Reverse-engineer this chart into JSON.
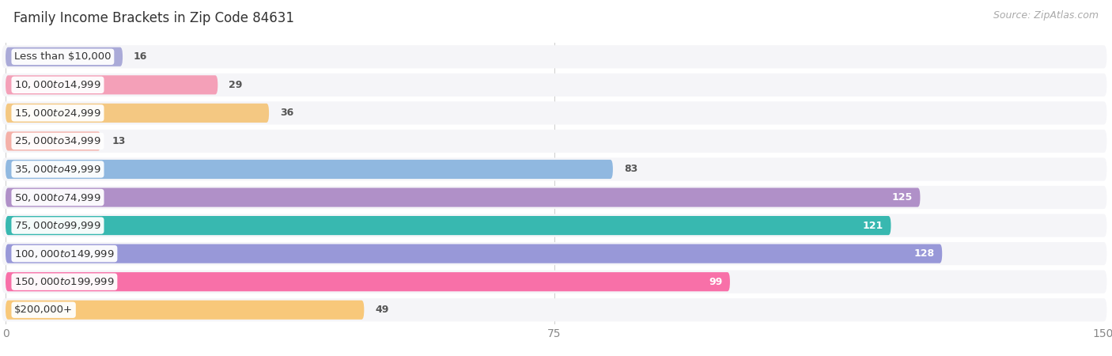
{
  "title": "Family Income Brackets in Zip Code 84631",
  "source": "Source: ZipAtlas.com",
  "categories": [
    "Less than $10,000",
    "$10,000 to $14,999",
    "$15,000 to $24,999",
    "$25,000 to $34,999",
    "$35,000 to $49,999",
    "$50,000 to $74,999",
    "$75,000 to $99,999",
    "$100,000 to $149,999",
    "$150,000 to $199,999",
    "$200,000+"
  ],
  "values": [
    16,
    29,
    36,
    13,
    83,
    125,
    121,
    128,
    99,
    49
  ],
  "bar_colors": [
    "#aaaad8",
    "#f4a0b8",
    "#f4c882",
    "#f4b0a8",
    "#90b8e0",
    "#b090c8",
    "#38b8b0",
    "#9898d8",
    "#f870a8",
    "#f8c87a"
  ],
  "label_colors": [
    "#666666",
    "#666666",
    "#666666",
    "#666666",
    "#666666",
    "#ffffff",
    "#ffffff",
    "#ffffff",
    "#ffffff",
    "#666666"
  ],
  "xlim": [
    0,
    150
  ],
  "xticks": [
    0,
    75,
    150
  ],
  "background_color": "#ffffff",
  "bar_bg_color": "#eeeeee",
  "row_bg_color": "#f5f5f8",
  "title_fontsize": 12,
  "source_fontsize": 9,
  "label_fontsize": 9,
  "tick_fontsize": 10,
  "category_fontsize": 9.5
}
